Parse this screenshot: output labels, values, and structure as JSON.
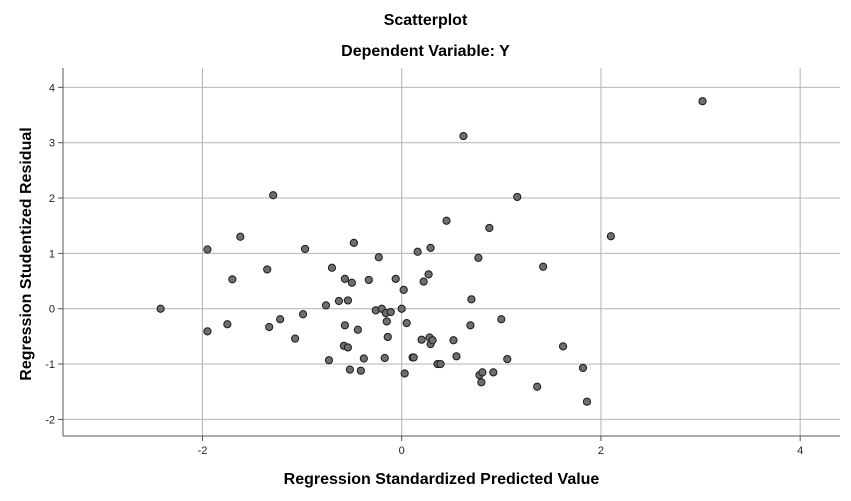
{
  "chart_data": {
    "type": "scatter",
    "title": "Scatterplot",
    "subtitle": "Dependent Variable: Y",
    "xlabel": "Regression Standardized Predicted Value",
    "ylabel": "Regression Studentized Residual",
    "xlim": [
      -3.4,
      4.4
    ],
    "ylim": [
      -2.3,
      4.35
    ],
    "xticks": [
      -2,
      0,
      2,
      4
    ],
    "xtick_labels": [
      "-2",
      "0",
      "2",
      "4"
    ],
    "yticks": [
      -2,
      -1,
      0,
      1,
      2,
      3,
      4
    ],
    "ytick_labels": [
      "-2",
      "-1",
      "0",
      "1",
      "2",
      "3",
      "4"
    ],
    "grid": true,
    "marker_color": "#6e6e6e",
    "points": [
      [
        -2.42,
        0.0
      ],
      [
        -1.95,
        1.07
      ],
      [
        -1.95,
        -0.41
      ],
      [
        -1.75,
        -0.28
      ],
      [
        -1.7,
        0.53
      ],
      [
        -1.62,
        1.3
      ],
      [
        -1.35,
        0.71
      ],
      [
        -1.33,
        -0.33
      ],
      [
        -1.29,
        2.05
      ],
      [
        -1.22,
        -0.19
      ],
      [
        -1.07,
        -0.54
      ],
      [
        -0.99,
        -0.1
      ],
      [
        -0.97,
        1.08
      ],
      [
        -0.76,
        0.06
      ],
      [
        -0.73,
        -0.93
      ],
      [
        -0.7,
        0.74
      ],
      [
        -0.63,
        0.14
      ],
      [
        -0.58,
        -0.67
      ],
      [
        -0.57,
        -0.3
      ],
      [
        -0.57,
        0.54
      ],
      [
        -0.54,
        0.15
      ],
      [
        -0.54,
        -0.7
      ],
      [
        -0.52,
        -1.1
      ],
      [
        -0.5,
        0.47
      ],
      [
        -0.48,
        1.19
      ],
      [
        -0.44,
        -0.38
      ],
      [
        -0.41,
        -1.12
      ],
      [
        -0.38,
        -0.9
      ],
      [
        -0.33,
        0.52
      ],
      [
        -0.26,
        -0.03
      ],
      [
        -0.23,
        0.93
      ],
      [
        -0.2,
        0.0
      ],
      [
        -0.17,
        -0.89
      ],
      [
        -0.16,
        -0.08
      ],
      [
        -0.15,
        -0.23
      ],
      [
        -0.14,
        -0.51
      ],
      [
        -0.11,
        -0.06
      ],
      [
        -0.06,
        0.54
      ],
      [
        0.0,
        0.0
      ],
      [
        0.02,
        0.34
      ],
      [
        0.03,
        -1.17
      ],
      [
        0.05,
        -0.26
      ],
      [
        0.11,
        -0.88
      ],
      [
        0.12,
        -0.88
      ],
      [
        0.16,
        1.03
      ],
      [
        0.2,
        -0.56
      ],
      [
        0.22,
        0.49
      ],
      [
        0.27,
        0.62
      ],
      [
        0.28,
        -0.52
      ],
      [
        0.29,
        1.1
      ],
      [
        0.29,
        -0.64
      ],
      [
        0.31,
        -0.57
      ],
      [
        0.36,
        -1.0
      ],
      [
        0.39,
        -1.0
      ],
      [
        0.45,
        1.59
      ],
      [
        0.52,
        -0.57
      ],
      [
        0.55,
        -0.86
      ],
      [
        0.62,
        3.12
      ],
      [
        0.69,
        -0.3
      ],
      [
        0.7,
        0.17
      ],
      [
        0.77,
        0.92
      ],
      [
        0.78,
        -1.2
      ],
      [
        0.8,
        -1.33
      ],
      [
        0.81,
        -1.15
      ],
      [
        0.88,
        1.46
      ],
      [
        0.92,
        -1.15
      ],
      [
        1.0,
        -0.19
      ],
      [
        1.06,
        -0.91
      ],
      [
        1.16,
        2.02
      ],
      [
        1.36,
        -1.41
      ],
      [
        1.42,
        0.76
      ],
      [
        1.62,
        -0.68
      ],
      [
        1.82,
        -1.07
      ],
      [
        1.86,
        -1.68
      ],
      [
        2.1,
        1.31
      ],
      [
        3.02,
        3.75
      ]
    ]
  }
}
